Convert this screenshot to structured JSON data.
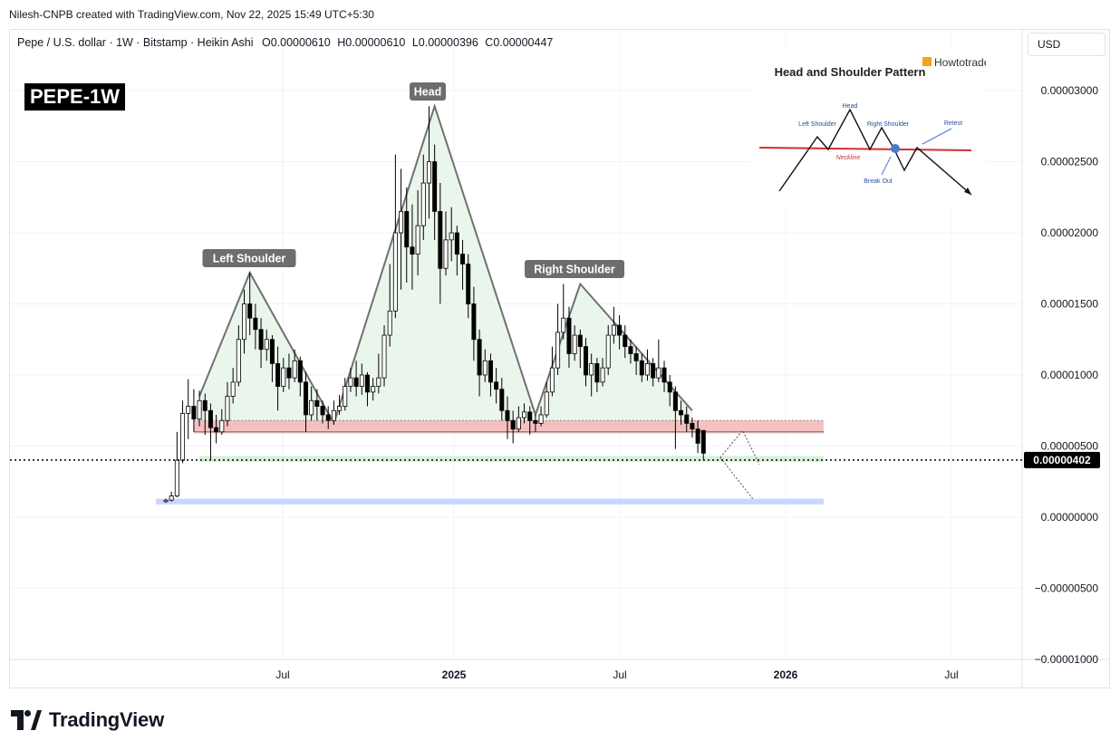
{
  "attribution": "Nilesh-CNPB created with TradingView.com, Nov 22, 2025 15:49 UTC+5:30",
  "symbol_line": "Pepe / U.S. dollar · 1W · Bitstamp · Heikin Ashi",
  "ohlc": {
    "open": "O0.00000610",
    "high": "H0.00000610",
    "low": "L0.00000396",
    "close": "C0.00000447"
  },
  "chart_tag": "PEPE-1W",
  "currency_button": "USD",
  "brand": "TradingView",
  "chart_data": {
    "type": "candlestick",
    "x_ticks": [
      "Jul",
      "2025",
      "Jul",
      "2026",
      "Jul"
    ],
    "y_ticks": [
      "0.00003000",
      "0.00002500",
      "0.00002000",
      "0.00001500",
      "0.00001000",
      "0.00000500",
      "0.00000000",
      "-0.00000500",
      "-0.00001000"
    ],
    "ylim": [
      -1e-05,
      3.35e-05
    ],
    "last_price": "0.00000402",
    "pattern_labels": {
      "left_shoulder": "Left Shoulder",
      "head": "Head",
      "right_shoulder": "Right Shoulder"
    },
    "pattern_points": [
      {
        "week": 6,
        "value": 8.5e-06
      },
      {
        "week": 15,
        "value": 1.72e-05
      },
      {
        "week": 30,
        "value": 6.6e-06
      },
      {
        "week": 48,
        "value": 2.89e-05
      },
      {
        "week": 66,
        "value": 7.2e-06
      },
      {
        "week": 74,
        "value": 1.64e-05
      },
      {
        "week": 94,
        "value": 7.5e-06
      }
    ],
    "zones": {
      "resistance": [
        5.9e-06,
        6.8e-06
      ],
      "support": [
        3.9e-06,
        4.3e-06
      ],
      "target": [
        9e-07,
        1.3e-06
      ],
      "neckline": 6e-06
    },
    "projection_path": [
      {
        "week": 99,
        "value": 4.2e-06
      },
      {
        "week": 103,
        "value": 6.1e-06
      },
      {
        "week": 106,
        "value": 3.7e-06
      }
    ],
    "projection_path2": [
      {
        "week": 99,
        "value": 4.2e-06
      },
      {
        "week": 105,
        "value": 1.2e-06
      }
    ],
    "candles": [
      {
        "o": 1.1e-06,
        "c": 1.2e-06,
        "h": 1.3e-06,
        "l": 1e-06
      },
      {
        "o": 1.2e-06,
        "c": 1.5e-06,
        "h": 1.8e-06,
        "l": 1.1e-06
      },
      {
        "o": 1.5e-06,
        "c": 4e-06,
        "h": 6e-06,
        "l": 1.4e-06
      },
      {
        "o": 4e-06,
        "c": 7.3e-06,
        "h": 8.2e-06,
        "l": 3.8e-06
      },
      {
        "o": 7.3e-06,
        "c": 7.8e-06,
        "h": 9.7e-06,
        "l": 5.5e-06
      },
      {
        "o": 7.8e-06,
        "c": 6.9e-06,
        "h": 9e-06,
        "l": 6e-06
      },
      {
        "o": 6.9e-06,
        "c": 8.2e-06,
        "h": 8.9e-06,
        "l": 6.4e-06
      },
      {
        "o": 8.2e-06,
        "c": 7.5e-06,
        "h": 8.7e-06,
        "l": 5.8e-06
      },
      {
        "o": 7.5e-06,
        "c": 6.3e-06,
        "h": 8e-06,
        "l": 4e-06
      },
      {
        "o": 6.3e-06,
        "c": 6e-06,
        "h": 7.2e-06,
        "l": 5.2e-06
      },
      {
        "o": 6e-06,
        "c": 6.8e-06,
        "h": 7.6e-06,
        "l": 5.8e-06
      },
      {
        "o": 6.8e-06,
        "c": 8.5e-06,
        "h": 9.5e-06,
        "l": 6.4e-06
      },
      {
        "o": 8.5e-06,
        "c": 9.5e-06,
        "h": 1.05e-05,
        "l": 8e-06
      },
      {
        "o": 9.5e-06,
        "c": 1.25e-05,
        "h": 1.35e-05,
        "l": 9.2e-06
      },
      {
        "o": 1.25e-05,
        "c": 1.5e-05,
        "h": 1.6e-05,
        "l": 1.15e-05
      },
      {
        "o": 1.5e-05,
        "c": 1.4e-05,
        "h": 1.72e-05,
        "l": 1.28e-05
      },
      {
        "o": 1.4e-05,
        "c": 1.32e-05,
        "h": 1.5e-05,
        "l": 1.18e-05
      },
      {
        "o": 1.32e-05,
        "c": 1.18e-05,
        "h": 1.4e-05,
        "l": 1.05e-05
      },
      {
        "o": 1.18e-05,
        "c": 1.25e-05,
        "h": 1.32e-05,
        "l": 1.1e-05
      },
      {
        "o": 1.25e-05,
        "c": 1.08e-05,
        "h": 1.28e-05,
        "l": 9.5e-06
      },
      {
        "o": 1.08e-05,
        "c": 9.2e-06,
        "h": 1.2e-05,
        "l": 7.5e-06
      },
      {
        "o": 9.2e-06,
        "c": 1.05e-05,
        "h": 1.12e-05,
        "l": 8.8e-06
      },
      {
        "o": 1.05e-05,
        "c": 9.8e-06,
        "h": 1.15e-05,
        "l": 9e-06
      },
      {
        "o": 9.8e-06,
        "c": 1.1e-05,
        "h": 1.18e-05,
        "l": 9.5e-06
      },
      {
        "o": 1.1e-05,
        "c": 9.5e-06,
        "h": 1.13e-05,
        "l": 8.5e-06
      },
      {
        "o": 9.5e-06,
        "c": 7.2e-06,
        "h": 1.02e-05,
        "l": 6e-06
      },
      {
        "o": 7.2e-06,
        "c": 8.2e-06,
        "h": 9.2e-06,
        "l": 6.8e-06
      },
      {
        "o": 8.2e-06,
        "c": 7.8e-06,
        "h": 9e-06,
        "l": 6.8e-06
      },
      {
        "o": 7.8e-06,
        "c": 7.2e-06,
        "h": 8.2e-06,
        "l": 6.6e-06
      },
      {
        "o": 7.2e-06,
        "c": 6.8e-06,
        "h": 7.8e-06,
        "l": 6.2e-06
      },
      {
        "o": 6.8e-06,
        "c": 7.5e-06,
        "h": 8.2e-06,
        "l": 6.5e-06
      },
      {
        "o": 7.5e-06,
        "c": 7.8e-06,
        "h": 8.6e-06,
        "l": 7.2e-06
      },
      {
        "o": 7.8e-06,
        "c": 9.2e-06,
        "h": 9.8e-06,
        "l": 7.5e-06
      },
      {
        "o": 9.2e-06,
        "c": 9.8e-06,
        "h": 1.05e-05,
        "l": 8.8e-06
      },
      {
        "o": 9.8e-06,
        "c": 9.2e-06,
        "h": 1.1e-05,
        "l": 8.5e-06
      },
      {
        "o": 9.2e-06,
        "c": 1e-05,
        "h": 1.08e-05,
        "l": 8.6e-06
      },
      {
        "o": 1e-05,
        "c": 8.8e-06,
        "h": 1.02e-05,
        "l": 7.8e-06
      },
      {
        "o": 8.8e-06,
        "c": 9.2e-06,
        "h": 9.8e-06,
        "l": 8.2e-06
      },
      {
        "o": 9.2e-06,
        "c": 9.8e-06,
        "h": 1.15e-05,
        "l": 8.7e-06
      },
      {
        "o": 9.8e-06,
        "c": 1.28e-05,
        "h": 1.35e-05,
        "l": 9.2e-06
      },
      {
        "o": 1.28e-05,
        "c": 1.45e-05,
        "h": 1.78e-05,
        "l": 1.2e-05
      },
      {
        "o": 1.45e-05,
        "c": 2e-05,
        "h": 2.55e-05,
        "l": 1.4e-05
      },
      {
        "o": 2e-05,
        "c": 2.15e-05,
        "h": 2.45e-05,
        "l": 1.6e-05
      },
      {
        "o": 2.15e-05,
        "c": 1.9e-05,
        "h": 2.32e-05,
        "l": 1.65e-05
      },
      {
        "o": 1.9e-05,
        "c": 1.85e-05,
        "h": 2.2e-05,
        "l": 1.6e-05
      },
      {
        "o": 1.85e-05,
        "c": 2.05e-05,
        "h": 2.3e-05,
        "l": 1.7e-05
      },
      {
        "o": 2.05e-05,
        "c": 2.35e-05,
        "h": 2.55e-05,
        "l": 1.95e-05
      },
      {
        "o": 2.35e-05,
        "c": 2.5e-05,
        "h": 2.89e-05,
        "l": 2.1e-05
      },
      {
        "o": 2.5e-05,
        "c": 2.15e-05,
        "h": 2.62e-05,
        "l": 1.95e-05
      },
      {
        "o": 2.15e-05,
        "c": 1.75e-05,
        "h": 2.35e-05,
        "l": 1.5e-05
      },
      {
        "o": 1.75e-05,
        "c": 1.95e-05,
        "h": 2.15e-05,
        "l": 1.7e-05
      },
      {
        "o": 1.95e-05,
        "c": 2e-05,
        "h": 2.18e-05,
        "l": 1.8e-05
      },
      {
        "o": 2e-05,
        "c": 1.85e-05,
        "h": 2.05e-05,
        "l": 1.7e-05
      },
      {
        "o": 1.85e-05,
        "c": 1.78e-05,
        "h": 1.95e-05,
        "l": 1.6e-05
      },
      {
        "o": 1.78e-05,
        "c": 1.5e-05,
        "h": 1.85e-05,
        "l": 1.4e-05
      },
      {
        "o": 1.5e-05,
        "c": 1.25e-05,
        "h": 1.62e-05,
        "l": 1.1e-05
      },
      {
        "o": 1.25e-05,
        "c": 1e-05,
        "h": 1.32e-05,
        "l": 8.5e-06
      },
      {
        "o": 1e-05,
        "c": 1.1e-05,
        "h": 1.18e-05,
        "l": 9.5e-06
      },
      {
        "o": 1.1e-05,
        "c": 9.5e-06,
        "h": 1.15e-05,
        "l": 8.5e-06
      },
      {
        "o": 9.5e-06,
        "c": 9e-06,
        "h": 1.05e-05,
        "l": 8e-06
      },
      {
        "o": 9e-06,
        "c": 7.5e-06,
        "h": 9.8e-06,
        "l": 6.8e-06
      },
      {
        "o": 7.5e-06,
        "c": 6.8e-06,
        "h": 8.5e-06,
        "l": 5.5e-06
      },
      {
        "o": 6.8e-06,
        "c": 6.2e-06,
        "h": 7.5e-06,
        "l": 5.2e-06
      },
      {
        "o": 6.2e-06,
        "c": 7e-06,
        "h": 7.8e-06,
        "l": 6e-06
      },
      {
        "o": 7e-06,
        "c": 7.4e-06,
        "h": 8e-06,
        "l": 6.6e-06
      },
      {
        "o": 7.4e-06,
        "c": 6.8e-06,
        "h": 7.8e-06,
        "l": 5.8e-06
      },
      {
        "o": 6.8e-06,
        "c": 6.6e-06,
        "h": 7.2e-06,
        "l": 6e-06
      },
      {
        "o": 6.6e-06,
        "c": 7.2e-06,
        "h": 7.8e-06,
        "l": 6.4e-06
      },
      {
        "o": 7.2e-06,
        "c": 8.8e-06,
        "h": 9.5e-06,
        "l": 7e-06
      },
      {
        "o": 8.8e-06,
        "c": 1.05e-05,
        "h": 1.2e-05,
        "l": 8.5e-06
      },
      {
        "o": 1.05e-05,
        "c": 1.3e-05,
        "h": 1.5e-05,
        "l": 1e-05
      },
      {
        "o": 1.3e-05,
        "c": 1.4e-05,
        "h": 1.64e-05,
        "l": 1.25e-05
      },
      {
        "o": 1.4e-05,
        "c": 1.15e-05,
        "h": 1.48e-05,
        "l": 1.05e-05
      },
      {
        "o": 1.15e-05,
        "c": 1.28e-05,
        "h": 1.35e-05,
        "l": 1.1e-05
      },
      {
        "o": 1.28e-05,
        "c": 1.2e-05,
        "h": 1.32e-05,
        "l": 1.05e-05
      },
      {
        "o": 1.2e-05,
        "c": 1e-05,
        "h": 1.26e-05,
        "l": 9.2e-06
      },
      {
        "o": 1e-05,
        "c": 1.08e-05,
        "h": 1.15e-05,
        "l": 8.5e-06
      },
      {
        "o": 1.08e-05,
        "c": 9.5e-06,
        "h": 1.12e-05,
        "l": 8.8e-06
      },
      {
        "o": 9.5e-06,
        "c": 1.05e-05,
        "h": 1.12e-05,
        "l": 9.2e-06
      },
      {
        "o": 1.05e-05,
        "c": 1.28e-05,
        "h": 1.35e-05,
        "l": 1e-05
      },
      {
        "o": 1.28e-05,
        "c": 1.35e-05,
        "h": 1.48e-05,
        "l": 1.22e-05
      },
      {
        "o": 1.35e-05,
        "c": 1.28e-05,
        "h": 1.42e-05,
        "l": 1.18e-05
      },
      {
        "o": 1.28e-05,
        "c": 1.2e-05,
        "h": 1.35e-05,
        "l": 1.12e-05
      },
      {
        "o": 1.2e-05,
        "c": 1.15e-05,
        "h": 1.25e-05,
        "l": 1.08e-05
      },
      {
        "o": 1.15e-05,
        "c": 1.1e-05,
        "h": 1.2e-05,
        "l": 1e-05
      },
      {
        "o": 1.1e-05,
        "c": 1e-05,
        "h": 1.15e-05,
        "l": 9.5e-06
      },
      {
        "o": 1e-05,
        "c": 1.08e-05,
        "h": 1.18e-05,
        "l": 9.6e-06
      },
      {
        "o": 1.08e-05,
        "c": 9.8e-06,
        "h": 1.12e-05,
        "l": 9.2e-06
      },
      {
        "o": 9.8e-06,
        "c": 1.05e-05,
        "h": 1.25e-05,
        "l": 9.5e-06
      },
      {
        "o": 1.05e-05,
        "c": 9.5e-06,
        "h": 1.1e-05,
        "l": 8.8e-06
      },
      {
        "o": 9.5e-06,
        "c": 8.8e-06,
        "h": 1e-05,
        "l": 7.8e-06
      },
      {
        "o": 8.8e-06,
        "c": 7.5e-06,
        "h": 9.2e-06,
        "l": 4.8e-06
      },
      {
        "o": 7.5e-06,
        "c": 7.2e-06,
        "h": 8.2e-06,
        "l": 6.5e-06
      },
      {
        "o": 7.2e-06,
        "c": 6.6e-06,
        "h": 7.8e-06,
        "l": 6e-06
      },
      {
        "o": 6.6e-06,
        "c": 6.2e-06,
        "h": 7e-06,
        "l": 5.6e-06
      },
      {
        "o": 6.2e-06,
        "c": 5.2e-06,
        "h": 6.8e-06,
        "l": 4.5e-06
      },
      {
        "o": 6.1e-06,
        "c": 4.5e-06,
        "h": 6.1e-06,
        "l": 4e-06
      }
    ]
  },
  "inset": {
    "brand": "Howtotrade",
    "title": "Head and Shoulder Pattern",
    "labels": {
      "head": "Head",
      "left_shoulder": "Left Shoulder",
      "right_shoulder": "Right Shoulder",
      "retest": "Retest",
      "neckline": "Neckline",
      "break_out": "Break Out"
    }
  },
  "colors": {
    "bull": "#ffffff",
    "bear": "#000000",
    "pattern_fill": "#e8f5e9",
    "pattern_line": "#707070",
    "resistance_zone": "#f4b6b6",
    "support_zone": "#c8ebc8",
    "target_zone": "#bfd0ff",
    "neckline_red": "#e53935"
  }
}
